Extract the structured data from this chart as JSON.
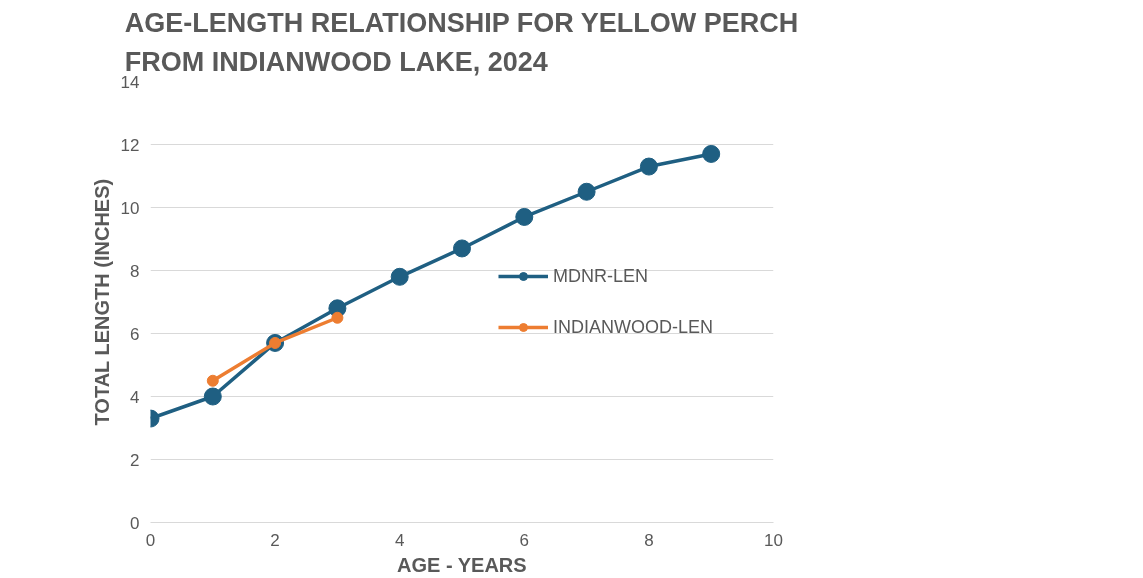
{
  "chart_data": {
    "type": "line",
    "title": "AGE-LENGTH RELATIONSHIP FOR YELLOW PERCH FROM INDIANWOOD LAKE, 2024",
    "xlabel": "AGE - YEARS",
    "ylabel": "TOTAL LENGTH (INCHES)",
    "series": [
      {
        "name": "MDNR-LEN",
        "color": "#1f5f82",
        "x": [
          0,
          1,
          2,
          3,
          4,
          5,
          6,
          7,
          8,
          9
        ],
        "values": [
          3.3,
          4.0,
          5.7,
          6.8,
          7.8,
          8.7,
          9.7,
          10.5,
          11.3,
          11.7
        ]
      },
      {
        "name": "INDIANWOOD-LEN",
        "color": "#ed7d31",
        "x": [
          1,
          2,
          3
        ],
        "values": [
          4.5,
          5.7,
          6.5
        ]
      }
    ],
    "xlim": [
      0,
      10
    ],
    "xticks": [
      0,
      2,
      4,
      6,
      8,
      10
    ],
    "ylim": [
      0,
      14
    ],
    "yticks": [
      0,
      2,
      4,
      6,
      8,
      10,
      12,
      14
    ],
    "grid": "y",
    "legend": "right",
    "marker": "circle",
    "line_style": "solid"
  }
}
